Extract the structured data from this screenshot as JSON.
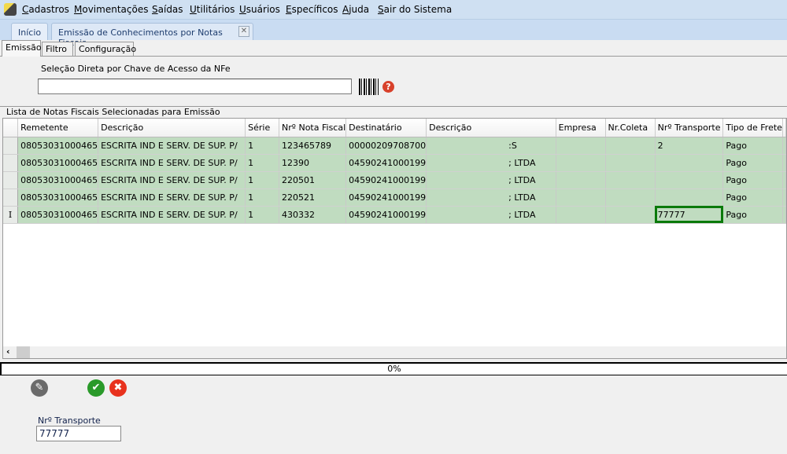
{
  "menu": {
    "items": [
      "Cadastros",
      "Movimentações",
      "Saídas",
      "Utilitários",
      "Usuários",
      "Específicos",
      "Ajuda",
      "Sair do Sistema"
    ]
  },
  "doc_tabs": {
    "home": "Início",
    "current": "Emissão de Conhecimentos por Notas Fiscais"
  },
  "sub_tabs": [
    "Emissão",
    "Filtro",
    "Configuração"
  ],
  "nfe": {
    "label": "Seleção Direta por Chave de Acesso da NFe",
    "value": "",
    "help": "?"
  },
  "list": {
    "title": "Lista de Notas Fiscais Selecionadas para Emissão",
    "columns": [
      "Remetente",
      "Descrição",
      "Série",
      "Nrº Nota Fiscal",
      "Destinatário",
      "Descrição",
      "Empresa",
      "Nr.Coleta",
      "Nrº Transporte",
      "Tipo de Frete"
    ],
    "rows": [
      [
        "08053031000465",
        "ESCRITA IND E SERV. DE SUP. P/",
        "1",
        "123465789",
        "00000209708700",
        ":S",
        "",
        "",
        "2",
        "Pago"
      ],
      [
        "08053031000465",
        "ESCRITA IND E SERV. DE SUP. P/",
        "1",
        "12390",
        "04590241000199",
        "; LTDA",
        "",
        "",
        "",
        "Pago"
      ],
      [
        "08053031000465",
        "ESCRITA IND E SERV. DE SUP. P/",
        "1",
        "220501",
        "04590241000199",
        "; LTDA",
        "",
        "",
        "",
        "Pago"
      ],
      [
        "08053031000465",
        "ESCRITA IND E SERV. DE SUP. P/",
        "1",
        "220521",
        "04590241000199",
        "; LTDA",
        "",
        "",
        "",
        "Pago"
      ],
      [
        "08053031000465",
        "ESCRITA IND E SERV. DE SUP. P/",
        "1",
        "430332",
        "04590241000199",
        "; LTDA",
        "",
        "",
        "77777",
        "Pago"
      ]
    ],
    "current_row_marker": "I"
  },
  "progress": {
    "text": "0%",
    "value": 0
  },
  "transporte": {
    "label": "Nrº Transporte",
    "value": "77777"
  },
  "colors": {
    "row_bg": "#c0dcc0",
    "selected_border": "#0a7a0a",
    "confirm": "#2a9a2a",
    "cancel": "#e8321e",
    "edit": "#6b6b6b"
  }
}
